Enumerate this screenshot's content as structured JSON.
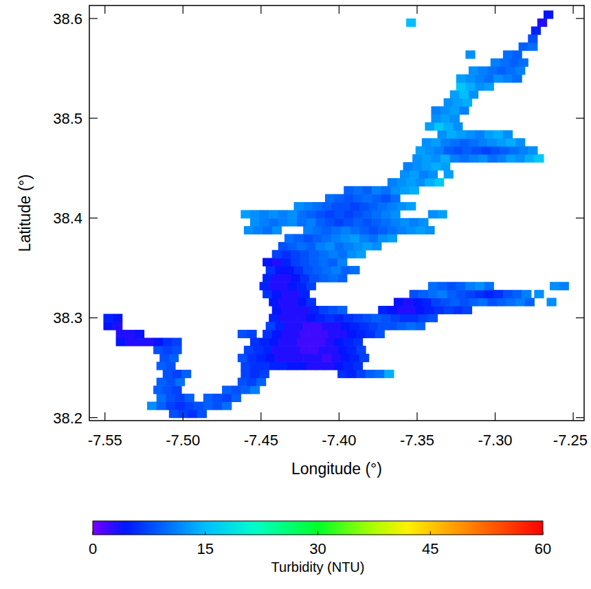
{
  "chart_data": {
    "type": "heatmap",
    "x_label": "Longitude (°)",
    "y_label": "Latitude (°)",
    "xlim": [
      -7.56,
      -7.243
    ],
    "ylim": [
      38.197,
      38.613
    ],
    "xticks": [
      -7.55,
      {
        "value": -7.5,
        "label": "-7.50"
      },
      -7.45,
      {
        "value": -7.4,
        "label": "-7.40"
      },
      -7.35,
      {
        "value": -7.3,
        "label": "-7.30"
      },
      -7.25
    ],
    "yticks": [
      38.2,
      38.3,
      38.4,
      38.5,
      38.6
    ],
    "cell_size": [
      0.006,
      0.008
    ],
    "rows": [
      {
        "lat": 38.204,
        "runs": [
          {
            "lon": -7.506,
            "values": [
              8,
              7,
              6,
              8
            ]
          }
        ]
      },
      {
        "lat": 38.212,
        "runs": [
          {
            "lon": -7.52,
            "values": [
              12,
              9,
              7,
              6,
              7,
              8,
              9,
              8,
              10
            ]
          }
        ]
      },
      {
        "lat": 38.22,
        "runs": [
          {
            "lon": -7.514,
            "values": [
              10,
              8,
              7,
              9
            ]
          },
          {
            "lon": -7.484,
            "values": [
              9,
              8,
              7,
              9
            ]
          }
        ]
      },
      {
        "lat": 38.228,
        "runs": [
          {
            "lon": -7.516,
            "values": [
              9,
              8,
              7
            ]
          },
          {
            "lon": -7.472,
            "values": [
              9,
              8,
              9,
              11
            ]
          }
        ]
      },
      {
        "lat": 38.236,
        "runs": [
          {
            "lon": -7.514,
            "values": [
              9,
              8,
              10
            ]
          },
          {
            "lon": -7.462,
            "values": [
              8,
              7,
              9
            ]
          }
        ]
      },
      {
        "lat": 38.244,
        "runs": [
          {
            "lon": -7.51,
            "values": [
              8,
              7,
              9
            ]
          },
          {
            "lon": -7.46,
            "values": [
              7,
              6,
              7
            ]
          },
          {
            "lon": -7.398,
            "values": [
              6,
              5,
              7,
              9,
              10,
              14
            ]
          }
        ]
      },
      {
        "lat": 38.252,
        "runs": [
          {
            "lon": -7.514,
            "values": [
              9,
              8
            ]
          },
          {
            "lon": -7.46,
            "values": [
              7,
              6,
              6,
              5,
              5,
              4,
              4,
              3,
              3,
              3,
              4,
              5,
              6
            ]
          }
        ]
      },
      {
        "lat": 38.26,
        "runs": [
          {
            "lon": -7.512,
            "values": [
              8,
              9
            ]
          },
          {
            "lon": -7.462,
            "values": [
              8,
              6,
              5,
              4,
              3,
              3,
              3,
              3,
              3,
              2,
              3,
              4,
              5,
              7
            ]
          }
        ]
      },
      {
        "lat": 38.268,
        "runs": [
          {
            "lon": -7.516,
            "values": [
              8,
              7,
              8
            ]
          },
          {
            "lon": -7.458,
            "values": [
              7,
              6,
              5,
              3,
              3,
              3,
              2,
              2,
              3,
              3,
              4,
              5,
              7
            ]
          }
        ]
      },
      {
        "lat": 38.276,
        "runs": [
          {
            "lon": -7.54,
            "values": [
              4,
              3,
              3,
              3,
              4,
              6,
              7
            ]
          },
          {
            "lon": -7.454,
            "values": [
              6,
              5,
              4,
              3,
              3,
              2,
              2,
              2,
              3,
              4,
              5,
              6
            ]
          }
        ]
      },
      {
        "lat": 38.284,
        "runs": [
          {
            "lon": -7.54,
            "values": [
              3,
              3,
              4
            ]
          },
          {
            "lon": -7.462,
            "values": [
              8,
              7
            ]
          },
          {
            "lon": -7.446,
            "values": [
              6,
              4,
              3,
              3,
              2,
              2,
              2,
              3,
              3,
              4,
              5,
              6,
              8
            ]
          }
        ]
      },
      {
        "lat": 38.292,
        "runs": [
          {
            "lon": -7.548,
            "values": [
              4,
              3
            ]
          },
          {
            "lon": -7.444,
            "values": [
              7,
              5,
              3,
              3,
              2,
              2,
              3,
              3,
              4,
              5,
              6,
              7,
              8,
              8,
              9,
              10,
              9
            ]
          }
        ]
      },
      {
        "lat": 38.3,
        "runs": [
          {
            "lon": -7.548,
            "values": [
              5,
              4
            ]
          },
          {
            "lon": -7.442,
            "values": [
              5,
              3,
              3,
              3,
              4,
              5,
              6,
              5,
              6,
              7,
              8,
              9,
              8,
              7,
              6,
              6,
              7,
              8
            ]
          }
        ]
      },
      {
        "lat": 38.308,
        "runs": [
          {
            "lon": -7.44,
            "values": [
              4,
              3,
              3,
              3,
              5,
              7,
              8,
              9
            ]
          },
          {
            "lon": -7.372,
            "values": [
              5,
              4,
              3,
              3,
              4,
              5,
              6,
              7,
              6,
              7
            ]
          }
        ]
      },
      {
        "lat": 38.316,
        "runs": [
          {
            "lon": -7.442,
            "values": [
              4,
              3,
              3,
              4,
              6
            ]
          },
          {
            "lon": -7.362,
            "values": [
              4,
              3,
              4,
              5,
              7,
              8,
              9,
              8,
              9,
              10,
              8,
              9,
              10,
              11,
              9
            ]
          },
          {
            "lon": -7.264,
            "values": [
              12
            ]
          }
        ]
      },
      {
        "lat": 38.324,
        "runs": [
          {
            "lon": -7.446,
            "values": [
              6,
              4,
              3,
              3,
              5
            ]
          },
          {
            "lon": -7.352,
            "values": [
              8,
              9,
              10,
              11,
              9,
              8,
              7,
              6,
              5,
              6,
              8,
              9,
              11
            ]
          },
          {
            "lon": -7.272,
            "values": [
              12
            ]
          }
        ]
      },
      {
        "lat": 38.332,
        "runs": [
          {
            "lon": -7.448,
            "values": [
              5,
              3,
              3,
              4,
              5,
              7
            ]
          },
          {
            "lon": -7.34,
            "values": [
              10,
              9,
              8,
              9,
              11,
              12,
              10
            ]
          },
          {
            "lon": -7.262,
            "values": [
              12,
              11
            ]
          }
        ]
      },
      {
        "lat": 38.34,
        "runs": [
          {
            "lon": -7.446,
            "values": [
              5,
              3,
              3,
              4,
              6,
              8,
              9,
              10,
              9
            ]
          }
        ]
      },
      {
        "lat": 38.348,
        "runs": [
          {
            "lon": -7.444,
            "values": [
              6,
              4,
              4,
              6,
              8,
              9,
              10,
              11,
              9,
              10
            ]
          }
        ]
      },
      {
        "lat": 38.356,
        "runs": [
          {
            "lon": -7.446,
            "values": [
              4,
              3,
              5,
              7,
              8,
              9,
              10,
              9,
              11
            ]
          }
        ]
      },
      {
        "lat": 38.364,
        "runs": [
          {
            "lon": -7.44,
            "values": [
              7,
              6,
              7,
              8,
              9,
              10,
              11,
              10,
              12,
              13
            ]
          }
        ]
      },
      {
        "lat": 38.372,
        "runs": [
          {
            "lon": -7.436,
            "values": [
              8,
              9,
              10,
              9,
              11,
              12,
              10,
              11,
              12,
              13,
              12
            ]
          }
        ]
      },
      {
        "lat": 38.38,
        "runs": [
          {
            "lon": -7.432,
            "values": [
              10,
              9,
              8,
              9,
              10,
              11,
              12,
              13,
              11,
              10,
              12,
              13
            ]
          }
        ]
      },
      {
        "lat": 38.388,
        "runs": [
          {
            "lon": -7.458,
            "values": [
              12,
              11,
              10,
              12
            ]
          },
          {
            "lon": -7.42,
            "values": [
              11,
              10,
              9,
              10,
              11,
              10,
              9,
              8,
              9,
              10,
              11,
              12,
              13,
              12
            ]
          }
        ]
      },
      {
        "lat": 38.396,
        "runs": [
          {
            "lon": -7.454,
            "values": [
              12,
              11,
              10,
              11,
              12,
              10,
              11,
              9,
              8,
              7,
              8,
              9,
              8,
              9,
              10,
              11,
              12,
              11,
              12
            ]
          }
        ]
      },
      {
        "lat": 38.404,
        "runs": [
          {
            "lon": -7.46,
            "values": [
              13,
              12,
              11,
              12,
              11,
              12,
              10,
              9,
              8,
              7,
              8,
              7,
              8,
              9,
              10,
              11,
              12
            ]
          },
          {
            "lon": -7.34,
            "values": [
              12,
              13
            ]
          }
        ]
      },
      {
        "lat": 38.412,
        "runs": [
          {
            "lon": -7.426,
            "values": [
              12,
              11,
              10,
              9,
              8,
              8,
              7,
              8,
              9,
              10,
              11,
              12,
              13
            ]
          }
        ]
      },
      {
        "lat": 38.42,
        "runs": [
          {
            "lon": -7.406,
            "values": [
              10,
              9,
              8,
              9,
              10,
              9,
              8,
              10
            ]
          }
        ]
      },
      {
        "lat": 38.428,
        "runs": [
          {
            "lon": -7.394,
            "values": [
              9,
              10,
              9,
              11,
              10,
              12,
              13,
              14
            ]
          }
        ]
      },
      {
        "lat": 38.436,
        "runs": [
          {
            "lon": -7.366,
            "values": [
              11,
              12,
              13,
              12,
              14,
              16
            ]
          }
        ]
      },
      {
        "lat": 38.444,
        "runs": [
          {
            "lon": -7.358,
            "values": [
              12,
              13,
              11,
              12
            ]
          },
          {
            "lon": -7.33,
            "values": [
              13
            ]
          }
        ]
      },
      {
        "lat": 38.452,
        "runs": [
          {
            "lon": -7.356,
            "values": [
              11,
              12,
              13,
              14,
              13
            ]
          }
        ]
      },
      {
        "lat": 38.46,
        "runs": [
          {
            "lon": -7.35,
            "values": [
              12,
              13,
              12,
              14,
              11,
              10,
              11,
              12,
              10,
              11,
              13,
              12,
              14,
              16
            ]
          }
        ]
      },
      {
        "lat": 38.468,
        "runs": [
          {
            "lon": -7.348,
            "values": [
              13,
              12,
              11,
              9,
              8,
              9,
              8,
              7,
              8,
              9,
              10,
              11,
              12
            ]
          }
        ]
      },
      {
        "lat": 38.476,
        "runs": [
          {
            "lon": -7.344,
            "values": [
              12,
              13,
              11,
              10,
              9,
              10,
              11,
              12,
              13,
              14,
              12
            ]
          }
        ]
      },
      {
        "lat": 38.484,
        "runs": [
          {
            "lon": -7.334,
            "values": [
              12,
              14,
              13,
              12,
              11,
              13,
              14,
              12
            ]
          }
        ]
      },
      {
        "lat": 38.492,
        "runs": [
          {
            "lon": -7.342,
            "values": [
              13,
              16,
              14,
              12
            ]
          }
        ]
      },
      {
        "lat": 38.5,
        "runs": [
          {
            "lon": -7.338,
            "values": [
              12,
              13,
              12
            ]
          }
        ]
      },
      {
        "lat": 38.508,
        "runs": [
          {
            "lon": -7.338,
            "values": [
              11,
              12,
              13,
              11
            ]
          }
        ]
      },
      {
        "lat": 38.516,
        "runs": [
          {
            "lon": -7.33,
            "values": [
              12,
              13,
              14
            ]
          }
        ]
      },
      {
        "lat": 38.524,
        "runs": [
          {
            "lon": -7.326,
            "values": [
              13,
              15,
              12
            ]
          }
        ]
      },
      {
        "lat": 38.532,
        "runs": [
          {
            "lon": -7.322,
            "values": [
              16,
              14,
              12,
              13
            ]
          }
        ]
      },
      {
        "lat": 38.54,
        "runs": [
          {
            "lon": -7.322,
            "values": [
              13,
              12,
              11,
              10,
              12,
              11,
              10
            ]
          }
        ]
      },
      {
        "lat": 38.548,
        "runs": [
          {
            "lon": -7.314,
            "values": [
              12,
              11,
              10,
              9,
              10,
              11
            ]
          }
        ]
      },
      {
        "lat": 38.556,
        "runs": [
          {
            "lon": -7.3,
            "values": [
              11,
              10,
              9,
              10
            ]
          }
        ]
      },
      {
        "lat": 38.564,
        "runs": [
          {
            "lon": -7.316,
            "values": [
              12
            ]
          },
          {
            "lon": -7.292,
            "values": [
              10,
              9
            ]
          }
        ]
      },
      {
        "lat": 38.572,
        "runs": [
          {
            "lon": -7.282,
            "values": [
              9,
              10
            ]
          }
        ]
      },
      {
        "lat": 38.58,
        "runs": [
          {
            "lon": -7.276,
            "values": [
              8
            ]
          }
        ]
      },
      {
        "lat": 38.588,
        "runs": [
          {
            "lon": -7.274,
            "values": [
              5
            ]
          }
        ]
      },
      {
        "lat": 38.596,
        "runs": [
          {
            "lon": -7.354,
            "values": [
              15
            ]
          },
          {
            "lon": -7.27,
            "values": [
              3
            ]
          }
        ]
      },
      {
        "lat": 38.604,
        "runs": [
          {
            "lon": -7.266,
            "values": [
              4
            ]
          }
        ]
      }
    ],
    "colorbar": {
      "range": [
        0,
        60
      ],
      "ticks": [
        0,
        15,
        30,
        45,
        60
      ],
      "label": "Turbidity (NTU)"
    }
  }
}
